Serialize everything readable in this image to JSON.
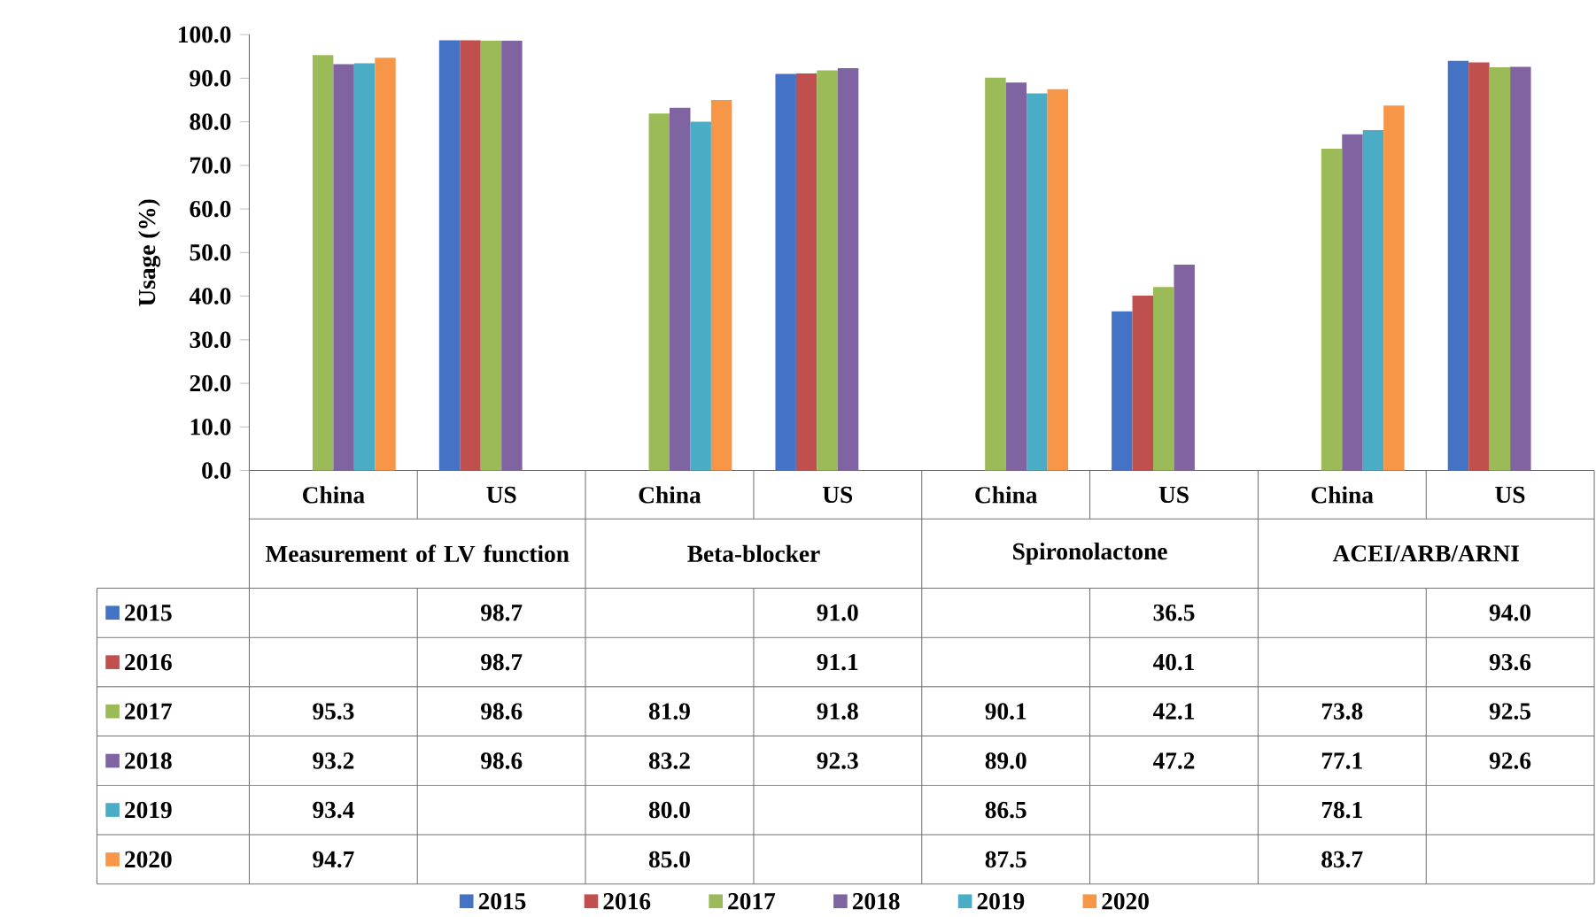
{
  "chart_data": {
    "type": "bar",
    "ylabel": "Usage (%)",
    "categories": [
      "China",
      "US",
      "China",
      "US",
      "China",
      "US",
      "China",
      "US"
    ],
    "annotations": [
      "Measurement of LV function",
      "Beta-blocker",
      "Spironolactone",
      "ACEI/ARB/ARNI"
    ],
    "series": [
      {
        "name": "2015",
        "color": "#4472c4",
        "values": [
          null,
          98.7,
          null,
          91.0,
          null,
          36.5,
          null,
          94.0
        ],
        "value_labels": [
          null,
          "98.7",
          null,
          "91.0",
          null,
          "36.5",
          null,
          "94.0"
        ]
      },
      {
        "name": "2016",
        "color": "#c0504d",
        "values": [
          null,
          98.7,
          null,
          91.1,
          null,
          40.1,
          null,
          93.6
        ],
        "value_labels": [
          null,
          "98.7",
          null,
          "91.1",
          null,
          "40.1",
          null,
          "93.6"
        ]
      },
      {
        "name": "2017",
        "color": "#9bbb59",
        "values": [
          95.3,
          98.6,
          81.9,
          91.8,
          90.1,
          42.1,
          73.8,
          92.5
        ],
        "value_labels": [
          "95.3",
          "98.6",
          "81.9",
          "91.8",
          "90.1",
          "42.1",
          "73.8",
          "92.5"
        ]
      },
      {
        "name": "2018",
        "color": "#8064a2",
        "values": [
          93.2,
          98.6,
          83.2,
          92.3,
          89.0,
          47.2,
          77.1,
          92.6
        ],
        "value_labels": [
          "93.2",
          "98.6",
          "83.2",
          "92.3",
          "89.0",
          "47.2",
          "77.1",
          "92.6"
        ]
      },
      {
        "name": "2019",
        "color": "#4bacc6",
        "values": [
          93.4,
          null,
          80.0,
          null,
          86.5,
          null,
          78.1,
          null
        ],
        "value_labels": [
          "93.4",
          null,
          "80.0",
          null,
          "86.5",
          null,
          "78.1",
          null
        ]
      },
      {
        "name": "2020",
        "color": "#f79646",
        "values": [
          94.7,
          null,
          85.0,
          null,
          87.5,
          null,
          83.7,
          null
        ],
        "value_labels": [
          "94.7",
          null,
          "85.0",
          null,
          "87.5",
          null,
          "83.7",
          null
        ]
      }
    ],
    "ylim": [
      0,
      100
    ],
    "yticks": [
      {
        "value": 0,
        "label": "0.0"
      },
      {
        "value": 10,
        "label": "10.0"
      },
      {
        "value": 20,
        "label": "20.0"
      },
      {
        "value": 30,
        "label": "30.0"
      },
      {
        "value": 40,
        "label": "40.0"
      },
      {
        "value": 50,
        "label": "50.0"
      },
      {
        "value": 60,
        "label": "60.0"
      },
      {
        "value": 70,
        "label": "70.0"
      },
      {
        "value": 80,
        "label": "80.0"
      },
      {
        "value": 90,
        "label": "90.0"
      },
      {
        "value": 100,
        "label": "100.0"
      }
    ],
    "legend": "bottom"
  }
}
